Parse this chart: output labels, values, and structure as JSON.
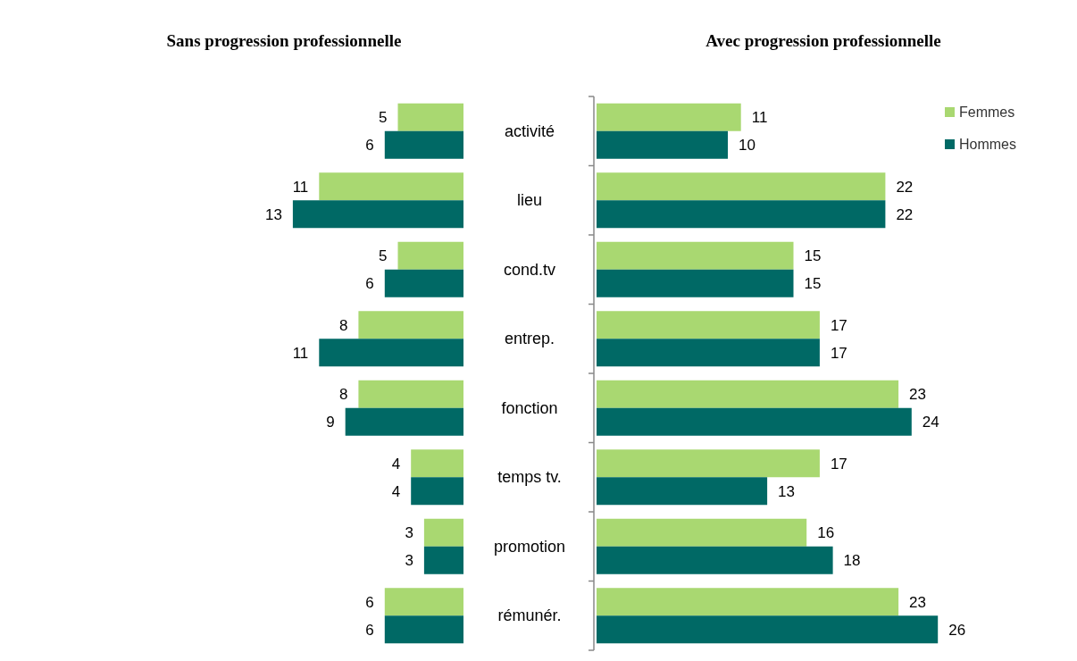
{
  "chart_data": [
    {
      "type": "bar",
      "orientation": "horizontal",
      "title": "Sans progression professionnelle",
      "categories": [
        "activité",
        "lieu",
        "cond.tv",
        "entrep.",
        "fonction",
        "temps tv.",
        "promotion",
        "rémunér."
      ],
      "tick_labels": false,
      "data_labels": true,
      "legend": false,
      "series": [
        {
          "color": "#a9d871",
          "values": [
            5,
            11,
            5,
            8,
            8,
            4,
            3,
            6
          ]
        },
        {
          "color": "#006965",
          "values": [
            6,
            13,
            6,
            11,
            9,
            4,
            3,
            6
          ]
        }
      ]
    },
    {
      "type": "bar",
      "orientation": "horizontal",
      "title": "Avec progression professionnelle",
      "categories": [
        "activité",
        "lieu",
        "cond.tv",
        "entrep.",
        "fonction",
        "temps tv.",
        "promotion",
        "rémunér."
      ],
      "tick_labels": "y",
      "data_labels": true,
      "legend": "top right",
      "series": [
        {
          "name": "Femmes",
          "color": "#a9d871",
          "values": [
            11,
            22,
            15,
            17,
            23,
            17,
            16,
            23
          ]
        },
        {
          "name": "Hommes",
          "color": "#006965",
          "values": [
            10,
            22,
            15,
            17,
            24,
            13,
            18,
            26
          ]
        }
      ]
    }
  ]
}
